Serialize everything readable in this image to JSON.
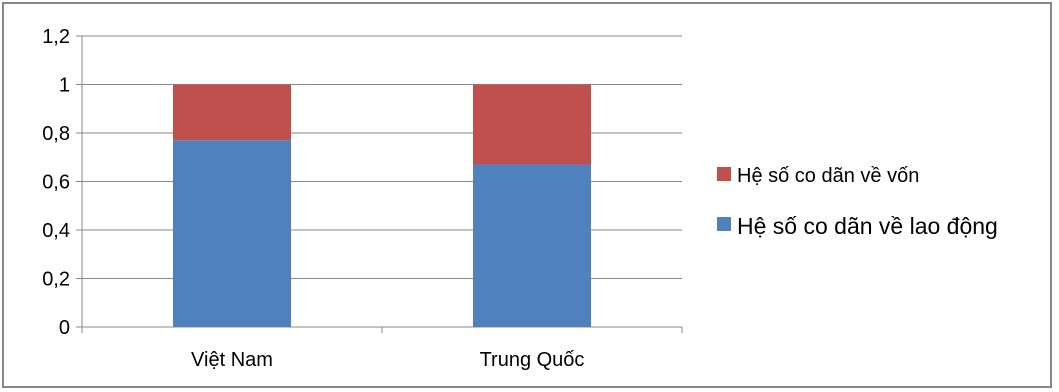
{
  "chart_data": {
    "type": "bar",
    "stacked": true,
    "categories": [
      "Việt Nam",
      "Trung Quốc"
    ],
    "series": [
      {
        "name": "Hệ số co dãn về lao động",
        "values": [
          0.77,
          0.67
        ],
        "color": "#4F81BD"
      },
      {
        "name": "Hệ số co dãn về vốn",
        "values": [
          0.23,
          0.33
        ],
        "color": "#C0504D"
      }
    ],
    "y_ticks": [
      "0",
      "0,2",
      "0,4",
      "0,6",
      "0,8",
      "1",
      "1,2"
    ],
    "ylim": [
      0,
      1.2
    ],
    "grid": true,
    "legend_position": "right",
    "legend": [
      "Hệ số co dãn về vốn",
      "Hệ số co dãn về lao động"
    ],
    "title": "",
    "xlabel": "",
    "ylabel": ""
  }
}
